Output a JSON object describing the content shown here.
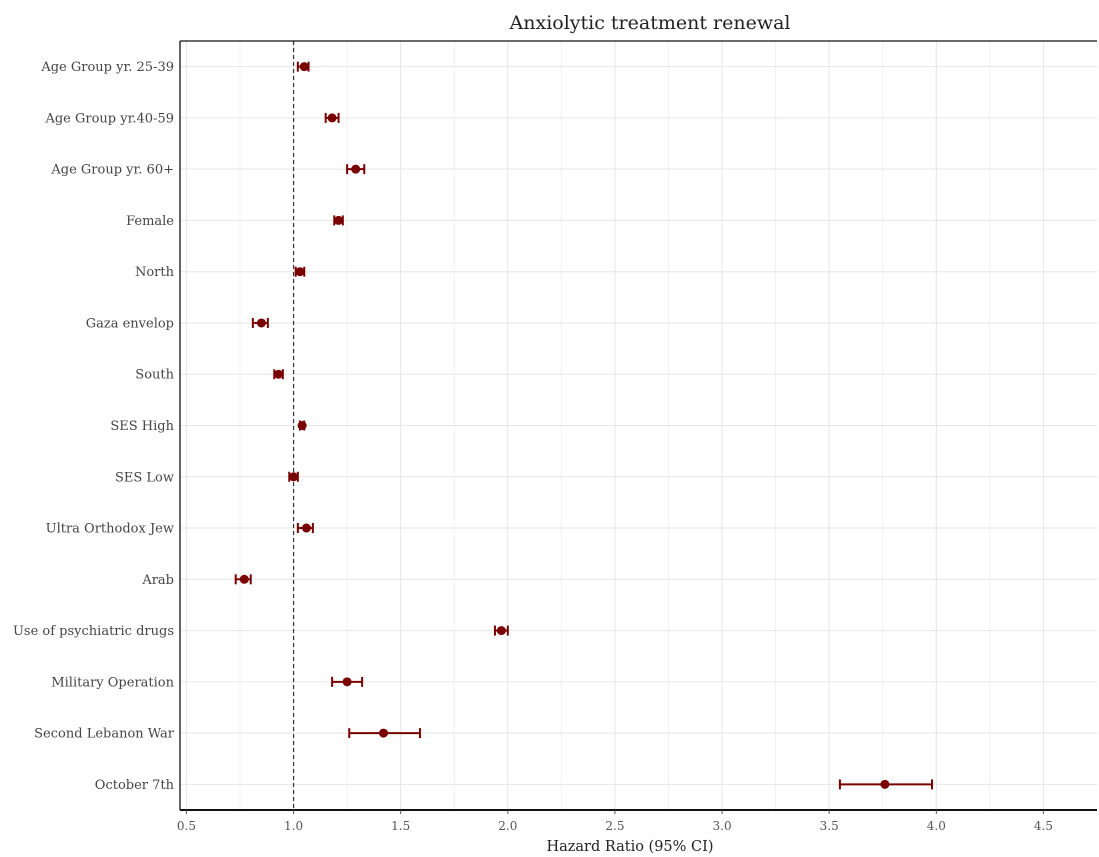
{
  "chart_data": {
    "type": "forest",
    "title": "Anxiolytic treatment renewal",
    "xlabel": "Hazard Ratio (95% CI)",
    "ylabel": "",
    "xlim": [
      0.47,
      4.75
    ],
    "xticks": [
      0.5,
      1.0,
      1.5,
      2.0,
      2.5,
      3.0,
      3.5,
      4.0,
      4.5
    ],
    "xtick_labels": [
      "0.5",
      "1.0",
      "1.5",
      "2.0",
      "2.5",
      "3.0",
      "3.5",
      "4.0",
      "4.5"
    ],
    "reference_line": 1.0,
    "grid": true,
    "colors": {
      "point": "#7a0000",
      "reference": "#333333",
      "grid": "#e6e6e6",
      "axis": "#111111"
    },
    "rows": [
      {
        "label": "Age Group yr. 25-39",
        "hr": 1.05,
        "lower": 1.02,
        "upper": 1.07
      },
      {
        "label": "Age Group yr.40-59",
        "hr": 1.18,
        "lower": 1.15,
        "upper": 1.21
      },
      {
        "label": "Age Group yr. 60+",
        "hr": 1.29,
        "lower": 1.25,
        "upper": 1.33
      },
      {
        "label": "Female",
        "hr": 1.21,
        "lower": 1.19,
        "upper": 1.23
      },
      {
        "label": "North",
        "hr": 1.03,
        "lower": 1.01,
        "upper": 1.05
      },
      {
        "label": "Gaza envelop",
        "hr": 0.85,
        "lower": 0.81,
        "upper": 0.88
      },
      {
        "label": "South",
        "hr": 0.93,
        "lower": 0.91,
        "upper": 0.95
      },
      {
        "label": "SES High",
        "hr": 1.04,
        "lower": 1.03,
        "upper": 1.05
      },
      {
        "label": "SES Low",
        "hr": 1.0,
        "lower": 0.98,
        "upper": 1.02
      },
      {
        "label": "Ultra Orthodox Jew",
        "hr": 1.06,
        "lower": 1.02,
        "upper": 1.09
      },
      {
        "label": "Arab",
        "hr": 0.77,
        "lower": 0.73,
        "upper": 0.8
      },
      {
        "label": "Use of psychiatric drugs",
        "hr": 1.97,
        "lower": 1.94,
        "upper": 2.0
      },
      {
        "label": "Military Operation",
        "hr": 1.25,
        "lower": 1.18,
        "upper": 1.32
      },
      {
        "label": "Second Lebanon War",
        "hr": 1.42,
        "lower": 1.26,
        "upper": 1.59
      },
      {
        "label": "October 7th",
        "hr": 3.76,
        "lower": 3.55,
        "upper": 3.98
      }
    ]
  }
}
